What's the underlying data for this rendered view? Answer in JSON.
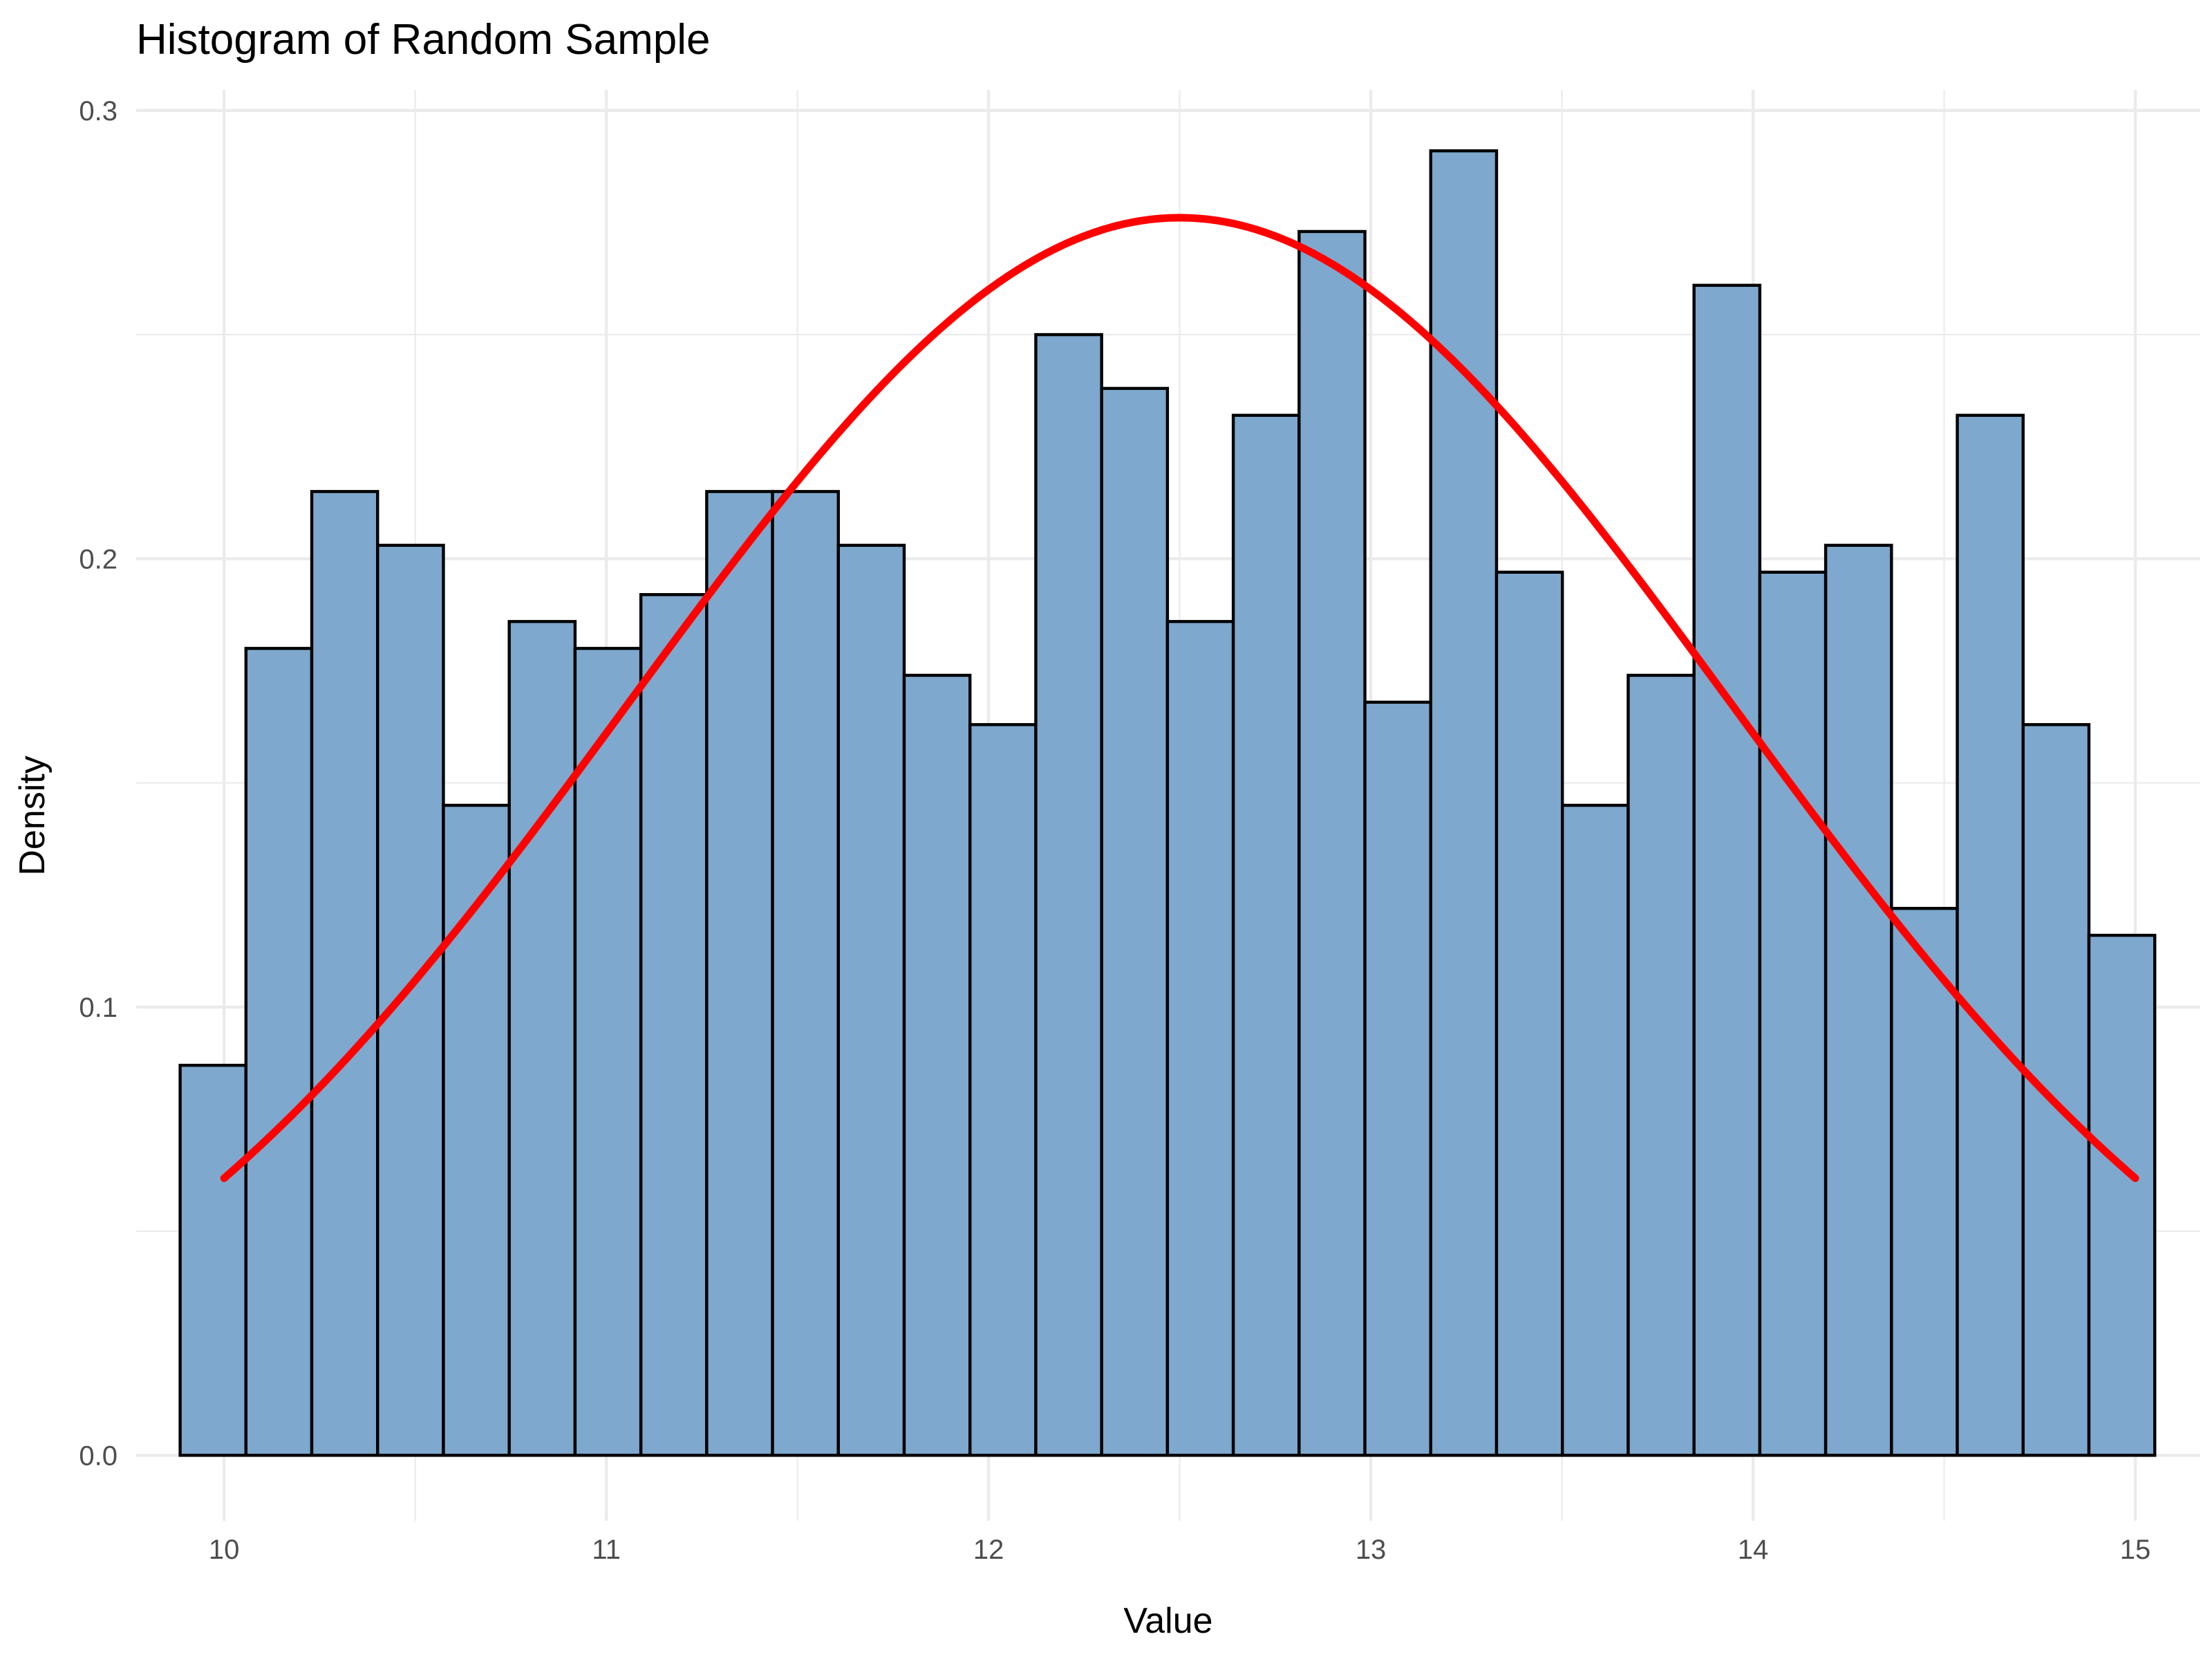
{
  "chart_data": {
    "type": "bar",
    "title": "Histogram of Random Sample",
    "xlabel": "Value",
    "ylabel": "Density",
    "xlim": [
      9.77,
      15.17
    ],
    "ylim": [
      -0.0146,
      0.3046
    ],
    "x_ticks": [
      10,
      11,
      12,
      13,
      14,
      15
    ],
    "x_tick_labels": [
      "10",
      "11",
      "12",
      "13",
      "14",
      "15"
    ],
    "y_ticks": [
      0.0,
      0.1,
      0.2,
      0.3
    ],
    "y_tick_labels": [
      "0.0",
      "0.1",
      "0.2",
      "0.3"
    ],
    "grid": true,
    "bins": {
      "start": 9.885,
      "width": 0.1722,
      "densities": [
        0.087,
        0.18,
        0.215,
        0.203,
        0.145,
        0.186,
        0.18,
        0.192,
        0.215,
        0.215,
        0.203,
        0.174,
        0.163,
        0.25,
        0.238,
        0.186,
        0.232,
        0.273,
        0.168,
        0.291,
        0.197,
        0.145,
        0.174,
        0.261,
        0.197,
        0.203,
        0.122,
        0.232,
        0.163,
        0.116
      ]
    },
    "bar_fill": "#7ea8cd",
    "bar_outline": "#000000",
    "density_curve": {
      "type": "normal",
      "mean": 12.5,
      "sd": 1.445,
      "x_range": [
        10,
        15
      ],
      "color": "#ff0000"
    }
  }
}
